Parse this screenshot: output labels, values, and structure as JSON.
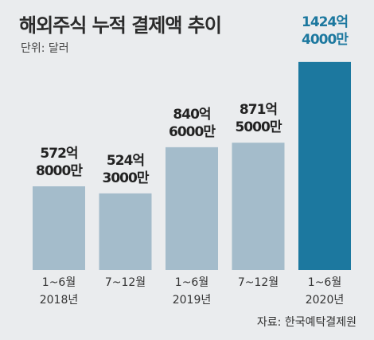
{
  "chart_data": {
    "type": "bar",
    "title": "해외주식 누적 결제액 추이",
    "unit_label": "단위: 달러",
    "source": "자료: 한국예탁결제원",
    "categories": [
      {
        "period": "1~6월",
        "year": "2018년"
      },
      {
        "period": "7~12월",
        "year": ""
      },
      {
        "period": "1~6월",
        "year": "2019년"
      },
      {
        "period": "7~12월",
        "year": ""
      },
      {
        "period": "1~6월",
        "year": "2020년"
      }
    ],
    "values": [
      57280000000,
      52430000000,
      84060000000,
      87150000000,
      142440000000
    ],
    "value_labels": [
      [
        "572억",
        "8000만"
      ],
      [
        "524억",
        "3000만"
      ],
      [
        "840억",
        "6000만"
      ],
      [
        "871억",
        "5000만"
      ],
      [
        "1424억",
        "4000만"
      ]
    ],
    "ylim": [
      0,
      150000000000
    ],
    "colors": {
      "bar": "#a4bccb",
      "highlight_bar": "#1c789f",
      "label": "#222222",
      "highlight_label": "#1c789f"
    },
    "highlight_index": 4
  }
}
